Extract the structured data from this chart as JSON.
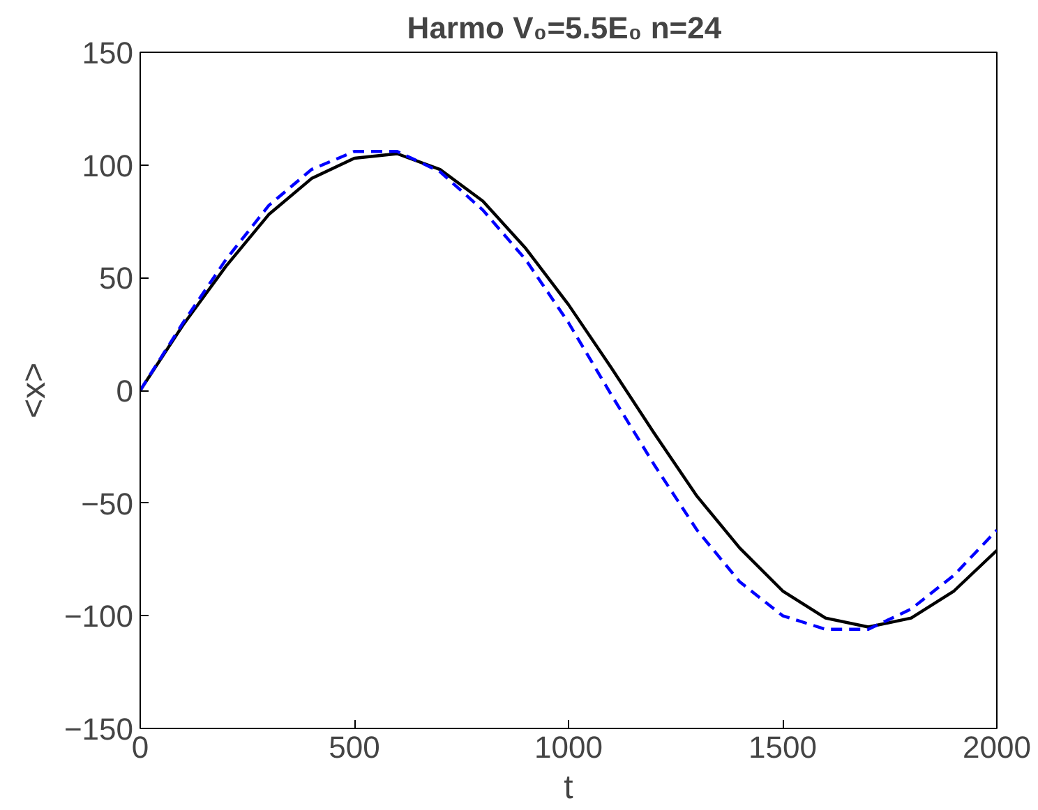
{
  "chart_data": {
    "type": "line",
    "title": "Harmo V₀=5.5E₀  n=24",
    "xlabel": "t",
    "ylabel": "<x>",
    "x": [
      0,
      100,
      200,
      300,
      400,
      500,
      600,
      700,
      800,
      900,
      1000,
      1100,
      1200,
      1300,
      1400,
      1500,
      1600,
      1700,
      1800,
      1900,
      2000
    ],
    "series": [
      {
        "color": "#000000",
        "line_style": "solid",
        "values": [
          0,
          29,
          55,
          78,
          94,
          103,
          105,
          98,
          84,
          63,
          38,
          10,
          -19,
          -47,
          -70,
          -89,
          -101,
          -105,
          -101,
          -89,
          -71
        ]
      },
      {
        "color": "#0000ff",
        "line_style": "dashed",
        "values": [
          0,
          30,
          58,
          82,
          98,
          106,
          106,
          97,
          80,
          58,
          30,
          -2,
          -33,
          -62,
          -85,
          -100,
          -106,
          -106,
          -97,
          -82,
          -62
        ]
      }
    ],
    "xlim": [
      0,
      2000
    ],
    "ylim": [
      -150,
      150
    ],
    "xticks": [
      0,
      500,
      1000,
      1500,
      2000
    ],
    "yticks": [
      -150,
      -100,
      -50,
      0,
      50,
      100,
      150
    ],
    "grid": false
  }
}
